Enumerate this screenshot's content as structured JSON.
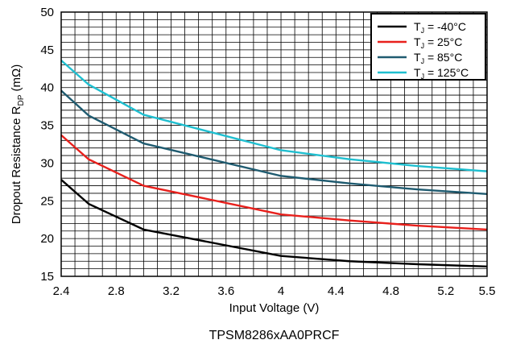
{
  "chart_data": {
    "type": "line",
    "xlabel": "Input Voltage (V)",
    "ylabel": {
      "prefix": "Dropout Resistance R",
      "sub": "DP",
      "suffix": " (mΩ)"
    },
    "caption": "TPSM8286xAA0PRCF",
    "xlim": [
      2.4,
      5.5
    ],
    "ylim": [
      15,
      50
    ],
    "x_ticks": [
      "2.4",
      "2.8",
      "3.2",
      "3.6",
      "4",
      "4.4",
      "4.8",
      "5.2",
      "5.5"
    ],
    "y_ticks": [
      "15",
      "20",
      "25",
      "30",
      "35",
      "40",
      "45",
      "50"
    ],
    "grid": true,
    "legend_position": "top-right",
    "series": [
      {
        "label": {
          "pre": "T",
          "sub": "J",
          "post": " = -40°C"
        },
        "color": "#000000",
        "x": [
          2.4,
          2.6,
          3.0,
          4.0,
          4.5,
          5.0,
          5.5
        ],
        "y": [
          27.8,
          24.6,
          21.2,
          17.7,
          17.0,
          16.6,
          16.3
        ]
      },
      {
        "label": {
          "pre": "T",
          "sub": "J",
          "post": " =  25°C"
        },
        "color": "#e8201c",
        "x": [
          2.4,
          2.6,
          3.0,
          4.0,
          4.5,
          5.0,
          5.5
        ],
        "y": [
          33.7,
          30.5,
          27.0,
          23.2,
          22.4,
          21.7,
          21.2
        ]
      },
      {
        "label": {
          "pre": "T",
          "sub": "J",
          "post": " =  85°C"
        },
        "color": "#1f5b70",
        "x": [
          2.4,
          2.6,
          3.0,
          4.0,
          4.5,
          5.0,
          5.5
        ],
        "y": [
          39.6,
          36.3,
          32.6,
          28.3,
          27.3,
          26.5,
          25.9
        ]
      },
      {
        "label": {
          "pre": "T",
          "sub": "J",
          "post": " = 125°C"
        },
        "color": "#1fbfd0",
        "x": [
          2.4,
          2.6,
          3.0,
          4.0,
          4.5,
          5.0,
          5.5
        ],
        "y": [
          43.6,
          40.4,
          36.4,
          31.7,
          30.5,
          29.6,
          28.9
        ]
      }
    ]
  }
}
